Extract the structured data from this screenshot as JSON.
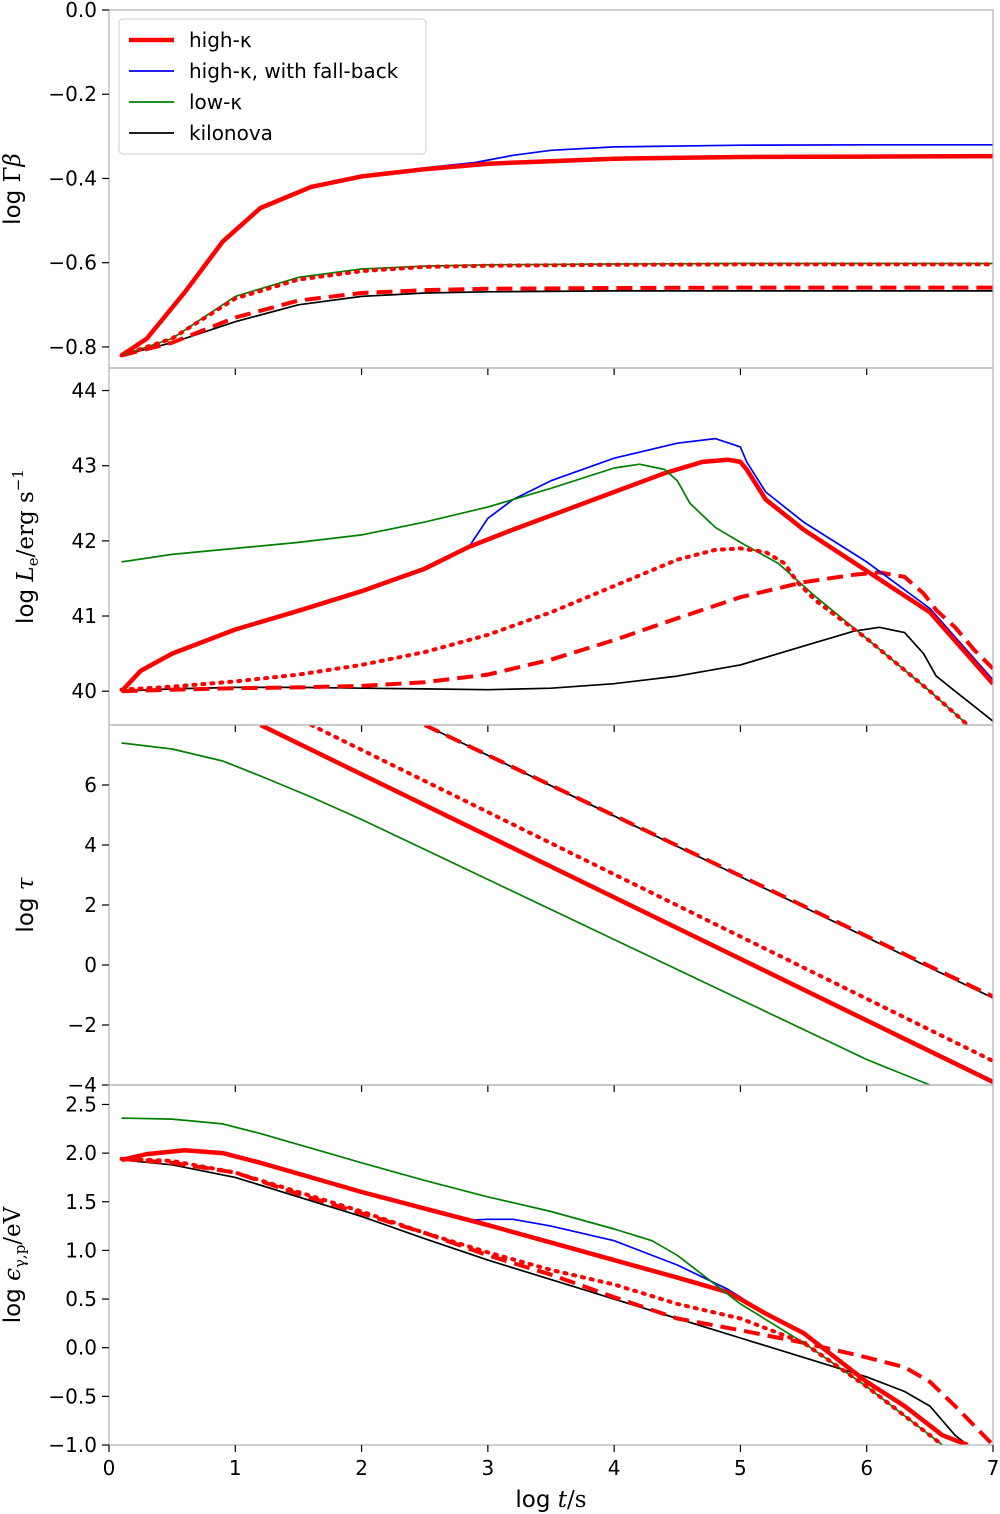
{
  "chart_data": [
    {
      "type": "line",
      "panel": "gamma-beta",
      "ylabel": "log Γβ",
      "ylim": [
        -0.85,
        0.0
      ],
      "xlim": [
        0,
        7
      ],
      "yticks": [
        0.0,
        -0.2,
        -0.4,
        -0.6,
        -0.8
      ],
      "ytick_labels": [
        "0.0",
        "−0.2",
        "−0.4",
        "−0.6",
        "−0.8"
      ],
      "series": [
        {
          "key": "high_kappa",
          "style": "solid",
          "x": [
            0.1,
            0.3,
            0.6,
            0.9,
            1.2,
            1.6,
            2.0,
            2.5,
            3.0,
            4.0,
            5.0,
            6.0,
            7.0
          ],
          "y": [
            -0.82,
            -0.78,
            -0.67,
            -0.55,
            -0.47,
            -0.42,
            -0.395,
            -0.378,
            -0.365,
            -0.353,
            -0.349,
            -0.348,
            -0.347
          ]
        },
        {
          "key": "high_kappa_fallback",
          "style": "solid",
          "x": [
            0.1,
            0.3,
            0.6,
            0.9,
            1.2,
            1.6,
            2.0,
            2.5,
            2.9,
            3.2,
            3.5,
            4.0,
            5.0,
            6.0,
            7.0
          ],
          "y": [
            -0.82,
            -0.78,
            -0.67,
            -0.55,
            -0.47,
            -0.42,
            -0.395,
            -0.375,
            -0.362,
            -0.345,
            -0.333,
            -0.325,
            -0.321,
            -0.32,
            -0.32
          ]
        },
        {
          "key": "low_kappa",
          "style": "solid",
          "x": [
            0.1,
            0.5,
            1.0,
            1.5,
            2.0,
            2.5,
            3.0,
            4.0,
            5.0,
            7.0
          ],
          "y": [
            -0.82,
            -0.78,
            -0.68,
            -0.635,
            -0.615,
            -0.608,
            -0.605,
            -0.603,
            -0.602,
            -0.602
          ]
        },
        {
          "key": "high_kappa_dotted",
          "style": "dotted",
          "x": [
            0.1,
            0.5,
            1.0,
            1.5,
            2.0,
            2.5,
            3.0,
            4.0,
            5.0,
            7.0
          ],
          "y": [
            -0.82,
            -0.78,
            -0.685,
            -0.64,
            -0.62,
            -0.61,
            -0.607,
            -0.605,
            -0.604,
            -0.604
          ]
        },
        {
          "key": "high_kappa_dashed",
          "style": "dashed",
          "x": [
            0.1,
            0.5,
            1.0,
            1.5,
            2.0,
            2.5,
            3.0,
            4.0,
            5.0,
            7.0
          ],
          "y": [
            -0.82,
            -0.79,
            -0.73,
            -0.69,
            -0.672,
            -0.665,
            -0.662,
            -0.66,
            -0.659,
            -0.659
          ]
        },
        {
          "key": "kilonova",
          "style": "solid",
          "x": [
            0.1,
            0.5,
            1.0,
            1.5,
            2.0,
            2.5,
            3.0,
            4.0,
            5.0,
            7.0
          ],
          "y": [
            -0.82,
            -0.79,
            -0.74,
            -0.7,
            -0.68,
            -0.672,
            -0.669,
            -0.667,
            -0.667,
            -0.667
          ]
        }
      ]
    },
    {
      "type": "line",
      "panel": "luminosity",
      "ylabel": "log L_e/erg s^-1",
      "ylim": [
        39.55,
        44.3
      ],
      "xlim": [
        0,
        7
      ],
      "yticks": [
        40,
        41,
        42,
        43,
        44
      ],
      "ytick_labels": [
        "40",
        "41",
        "42",
        "43",
        "44"
      ],
      "series": [
        {
          "key": "high_kappa",
          "style": "solid",
          "x": [
            0.1,
            0.25,
            0.5,
            1.0,
            1.5,
            2.0,
            2.5,
            2.85,
            3.2,
            3.6,
            4.0,
            4.4,
            4.7,
            4.9,
            5.0,
            5.05,
            5.2,
            5.5,
            6.0,
            6.5,
            7.0
          ],
          "y": [
            40.0,
            40.27,
            40.5,
            40.82,
            41.07,
            41.33,
            41.63,
            41.92,
            42.15,
            42.4,
            42.65,
            42.9,
            43.05,
            43.08,
            43.05,
            42.95,
            42.55,
            42.15,
            41.6,
            41.05,
            40.1
          ]
        },
        {
          "key": "high_kappa_fallback",
          "style": "solid",
          "x": [
            0.1,
            0.25,
            0.5,
            1.0,
            1.5,
            2.0,
            2.5,
            2.85,
            3.0,
            3.2,
            3.5,
            4.0,
            4.5,
            4.8,
            5.0,
            5.05,
            5.2,
            5.5,
            6.0,
            6.5,
            7.0
          ],
          "y": [
            40.0,
            40.27,
            40.5,
            40.82,
            41.07,
            41.33,
            41.63,
            41.92,
            42.3,
            42.55,
            42.8,
            43.1,
            43.3,
            43.36,
            43.25,
            43.05,
            42.65,
            42.25,
            41.72,
            41.1,
            40.15
          ]
        },
        {
          "key": "low_kappa",
          "style": "solid",
          "x": [
            0.1,
            0.5,
            1.0,
            1.5,
            2.0,
            2.5,
            3.0,
            3.5,
            4.0,
            4.2,
            4.4,
            4.5,
            4.6,
            4.8,
            5.0,
            5.3,
            5.6,
            6.0,
            6.5,
            6.8
          ],
          "y": [
            41.72,
            41.82,
            41.9,
            41.98,
            42.08,
            42.25,
            42.45,
            42.7,
            42.97,
            43.02,
            42.95,
            42.8,
            42.5,
            42.18,
            41.98,
            41.7,
            41.25,
            40.7,
            40.0,
            39.55
          ]
        },
        {
          "key": "high_kappa_dotted",
          "style": "dotted",
          "x": [
            0.1,
            0.5,
            1.0,
            1.5,
            2.0,
            2.5,
            3.0,
            3.5,
            4.0,
            4.5,
            4.8,
            5.0,
            5.2,
            5.35,
            5.45,
            5.6,
            6.0,
            6.5,
            6.8
          ],
          "y": [
            40.02,
            40.06,
            40.13,
            40.22,
            40.35,
            40.52,
            40.75,
            41.05,
            41.4,
            41.75,
            41.88,
            41.9,
            41.85,
            41.7,
            41.45,
            41.2,
            40.7,
            40.0,
            39.55
          ]
        },
        {
          "key": "high_kappa_dashed",
          "style": "dashed",
          "x": [
            0.1,
            0.5,
            1.0,
            1.5,
            2.0,
            2.5,
            3.0,
            3.5,
            4.0,
            4.5,
            5.0,
            5.5,
            5.9,
            6.1,
            6.3,
            6.45,
            6.55,
            6.7,
            6.85,
            7.0
          ],
          "y": [
            40.0,
            40.02,
            40.04,
            40.05,
            40.07,
            40.12,
            40.22,
            40.42,
            40.68,
            40.97,
            41.25,
            41.45,
            41.55,
            41.58,
            41.52,
            41.3,
            41.08,
            40.85,
            40.55,
            40.3
          ]
        },
        {
          "key": "kilonova",
          "style": "solid",
          "x": [
            0.1,
            0.5,
            1.0,
            1.5,
            2.0,
            2.5,
            3.0,
            3.5,
            4.0,
            4.5,
            5.0,
            5.5,
            5.9,
            6.1,
            6.3,
            6.45,
            6.55,
            6.7,
            6.85,
            7.0
          ],
          "y": [
            40.0,
            40.03,
            40.05,
            40.05,
            40.04,
            40.03,
            40.02,
            40.04,
            40.1,
            40.2,
            40.35,
            40.6,
            40.8,
            40.85,
            40.78,
            40.5,
            40.2,
            40.0,
            39.8,
            39.6
          ]
        }
      ]
    },
    {
      "type": "line",
      "panel": "optical-depth",
      "ylabel": "log τ",
      "ylim": [
        -4,
        8
      ],
      "xlim": [
        0,
        7
      ],
      "yticks": [
        -4,
        -2,
        0,
        2,
        4,
        6
      ],
      "ytick_labels": [
        "−4",
        "−2",
        "0",
        "2",
        "4",
        "6"
      ],
      "series": [
        {
          "key": "high_kappa",
          "style": "solid",
          "x": [
            1.2,
            7.0
          ],
          "y": [
            8.0,
            -3.9
          ]
        },
        {
          "key": "high_kappa_fallback",
          "style": "solid",
          "x": [
            1.2,
            7.0
          ],
          "y": [
            8.0,
            -3.85
          ]
        },
        {
          "key": "low_kappa",
          "style": "solid",
          "x": [
            0.1,
            0.5,
            0.9,
            1.2,
            1.6,
            2.0,
            3.0,
            4.0,
            5.0,
            6.0,
            6.5
          ],
          "y": [
            7.4,
            7.2,
            6.8,
            6.3,
            5.6,
            4.85,
            2.85,
            0.85,
            -1.15,
            -3.15,
            -4.0
          ]
        },
        {
          "key": "high_kappa_dotted",
          "style": "dotted",
          "x": [
            1.6,
            7.0
          ],
          "y": [
            8.0,
            -3.2
          ]
        },
        {
          "key": "high_kappa_dashed",
          "style": "dashed",
          "x": [
            2.5,
            7.0
          ],
          "y": [
            8.0,
            -1.05
          ]
        },
        {
          "key": "kilonova",
          "style": "solid",
          "x": [
            2.5,
            7.0
          ],
          "y": [
            8.0,
            -1.1
          ]
        }
      ]
    },
    {
      "type": "line",
      "panel": "photon-energy",
      "ylabel": "log ε_γ,p/eV",
      "xlabel": "log t/s",
      "ylim": [
        -1.0,
        2.7
      ],
      "xlim": [
        0,
        7
      ],
      "yticks": [
        -1.0,
        -0.5,
        0.0,
        0.5,
        1.0,
        1.5,
        2.0,
        2.5
      ],
      "ytick_labels": [
        "−1.0",
        "−0.5",
        "0.0",
        "0.5",
        "1.0",
        "1.5",
        "2.0",
        "2.5"
      ],
      "xticks": [
        0,
        1,
        2,
        3,
        4,
        5,
        6,
        7
      ],
      "xtick_labels": [
        "0",
        "1",
        "2",
        "3",
        "4",
        "5",
        "6",
        "7"
      ],
      "series": [
        {
          "key": "high_kappa",
          "style": "solid",
          "x": [
            0.1,
            0.3,
            0.6,
            0.9,
            1.2,
            1.6,
            2.0,
            2.5,
            3.0,
            3.5,
            4.0,
            4.5,
            4.9,
            5.0,
            5.2,
            5.5,
            6.0,
            6.3,
            6.6,
            6.8
          ],
          "y": [
            1.93,
            1.99,
            2.03,
            2.0,
            1.9,
            1.75,
            1.6,
            1.43,
            1.26,
            1.08,
            0.9,
            0.72,
            0.57,
            0.5,
            0.35,
            0.15,
            -0.35,
            -0.6,
            -0.9,
            -1.0
          ]
        },
        {
          "key": "high_kappa_fallback",
          "style": "solid",
          "x": [
            0.1,
            0.3,
            0.6,
            0.9,
            1.2,
            1.6,
            2.0,
            2.5,
            2.85,
            3.0,
            3.2,
            3.5,
            4.0,
            4.5,
            4.9,
            5.0,
            5.2,
            5.5,
            6.0,
            6.3,
            6.6,
            6.8
          ],
          "y": [
            1.93,
            1.99,
            2.03,
            2.0,
            1.9,
            1.75,
            1.6,
            1.43,
            1.31,
            1.32,
            1.32,
            1.25,
            1.1,
            0.85,
            0.6,
            0.52,
            0.35,
            0.15,
            -0.35,
            -0.6,
            -0.9,
            -1.0
          ]
        },
        {
          "key": "low_kappa",
          "style": "solid",
          "x": [
            0.1,
            0.5,
            0.9,
            1.2,
            1.6,
            2.0,
            2.5,
            3.0,
            3.5,
            4.0,
            4.3,
            4.5,
            4.7,
            5.0,
            5.5,
            6.0,
            6.4,
            6.6
          ],
          "y": [
            2.36,
            2.35,
            2.3,
            2.2,
            2.05,
            1.9,
            1.72,
            1.55,
            1.4,
            1.22,
            1.1,
            0.95,
            0.75,
            0.45,
            0.05,
            -0.4,
            -0.8,
            -1.0
          ]
        },
        {
          "key": "high_kappa_dotted",
          "style": "dotted",
          "x": [
            0.1,
            0.5,
            1.0,
            1.5,
            2.0,
            2.5,
            3.0,
            3.5,
            4.0,
            4.5,
            5.0,
            5.5,
            6.0,
            6.4,
            6.6
          ],
          "y": [
            1.94,
            1.92,
            1.8,
            1.6,
            1.4,
            1.18,
            0.98,
            0.8,
            0.65,
            0.45,
            0.3,
            0.05,
            -0.4,
            -0.8,
            -1.0
          ]
        },
        {
          "key": "high_kappa_dashed",
          "style": "dashed",
          "x": [
            0.1,
            0.5,
            1.0,
            1.5,
            2.0,
            2.5,
            3.0,
            3.5,
            4.0,
            4.5,
            5.0,
            5.5,
            6.0,
            6.3,
            6.5,
            6.7,
            6.85,
            7.0
          ],
          "y": [
            1.94,
            1.9,
            1.8,
            1.58,
            1.38,
            1.18,
            0.95,
            0.75,
            0.52,
            0.3,
            0.18,
            0.05,
            -0.1,
            -0.2,
            -0.35,
            -0.6,
            -0.8,
            -1.0
          ]
        },
        {
          "key": "kilonova",
          "style": "solid",
          "x": [
            0.1,
            0.5,
            1.0,
            1.5,
            2.0,
            2.5,
            3.0,
            3.5,
            4.0,
            4.5,
            5.0,
            5.5,
            6.0,
            6.3,
            6.5,
            6.6,
            6.7,
            6.8
          ],
          "y": [
            1.93,
            1.88,
            1.75,
            1.55,
            1.35,
            1.12,
            0.9,
            0.7,
            0.5,
            0.3,
            0.1,
            -0.1,
            -0.3,
            -0.45,
            -0.6,
            -0.75,
            -0.9,
            -1.0
          ]
        }
      ]
    }
  ],
  "legend": {
    "placement": "top-left of first panel",
    "entries": [
      {
        "key": "high_kappa",
        "label": "high-κ"
      },
      {
        "key": "high_kappa_fallback",
        "label": "high-κ, with fall-back"
      },
      {
        "key": "low_kappa",
        "label": "low-κ"
      },
      {
        "key": "kilonova",
        "label": "kilonova"
      }
    ]
  },
  "colors": {
    "high_kappa": "#ff0000",
    "high_kappa_fallback": "#0000ff",
    "low_kappa": "#008000",
    "kilonova": "#000000",
    "high_kappa_dotted": "#ff0000",
    "high_kappa_dashed": "#ff0000",
    "spine": "#b0b0b0"
  }
}
